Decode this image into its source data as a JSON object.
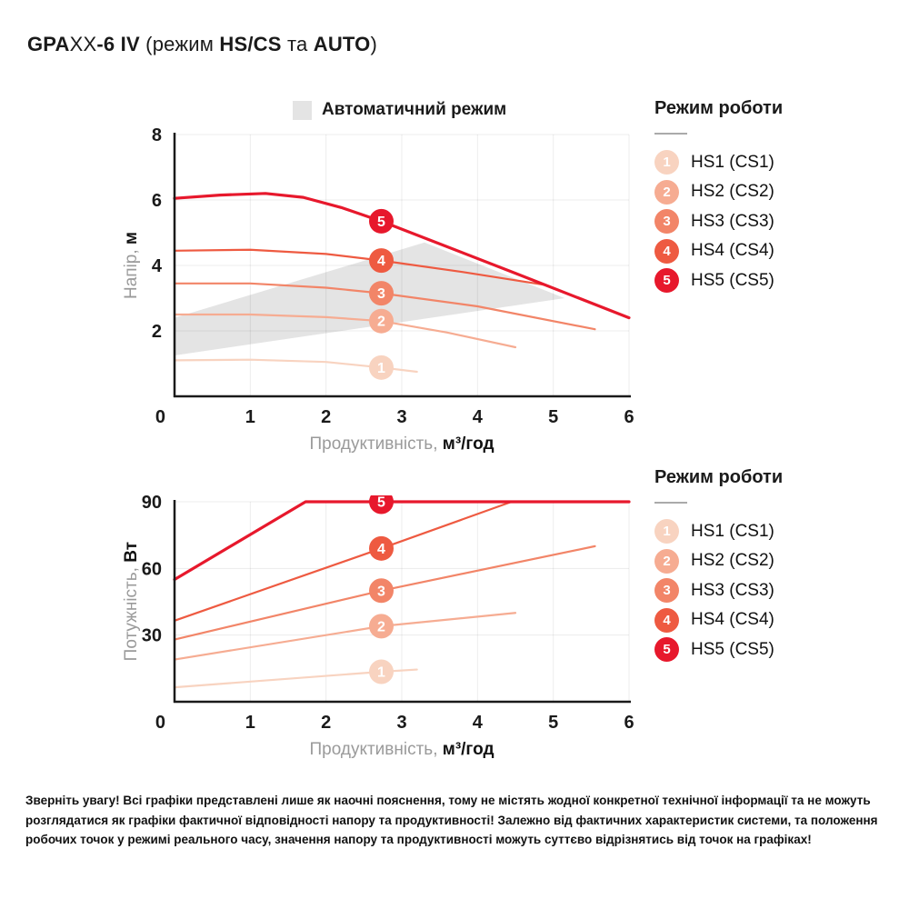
{
  "title_segments": [
    {
      "t": "GPA",
      "b": true
    },
    {
      "t": "XX",
      "b": false
    },
    {
      "t": "-6 IV",
      "b": true
    },
    {
      "t": " (режим ",
      "b": false
    },
    {
      "t": "HS/CS",
      "b": true
    },
    {
      "t": " та ",
      "b": false
    },
    {
      "t": "AUTO",
      "b": true
    },
    {
      "t": ")",
      "b": false
    }
  ],
  "mode_legend": {
    "title": "Режим роботи",
    "items": [
      {
        "num": "1",
        "label": "HS1 (CS1)",
        "color": "#f8d3c0"
      },
      {
        "num": "2",
        "label": "HS2 (CS2)",
        "color": "#f6ac92"
      },
      {
        "num": "3",
        "label": "HS3 (CS3)",
        "color": "#f28568"
      },
      {
        "num": "4",
        "label": "HS4 (CS4)",
        "color": "#ee5a41"
      },
      {
        "num": "5",
        "label": "HS5 (CS5)",
        "color": "#e7182c"
      }
    ]
  },
  "chart_data": [
    {
      "type": "line",
      "title": "Напір vs Продуктивність",
      "xlabel_segments": [
        {
          "t": "Продуктивність, ",
          "m": true
        },
        {
          "t": "м³/год",
          "b": true
        }
      ],
      "ylabel_segments": [
        {
          "t": "Напір, ",
          "m": true
        },
        {
          "t": "м",
          "b": true
        }
      ],
      "xlabel": "Продуктивність, м³/год",
      "ylabel": "Напір, м",
      "xlim": [
        0,
        6
      ],
      "ylim": [
        0,
        8
      ],
      "xticks": [
        0,
        1,
        2,
        3,
        4,
        5,
        6
      ],
      "yticks": [
        0,
        2,
        4,
        6,
        8
      ],
      "grid": true,
      "auto_mode_band": {
        "label": "Автоматичний режим",
        "color": "#e4e4e4",
        "points": [
          [
            0,
            1.25
          ],
          [
            0,
            2.4
          ],
          [
            3.3,
            4.7
          ],
          [
            5.15,
            3.0
          ]
        ]
      },
      "series": [
        {
          "name": "HS1 (CS1)",
          "color": "#f8d3c0",
          "width": 2.2,
          "points": [
            [
              0,
              1.1
            ],
            [
              1,
              1.12
            ],
            [
              2,
              1.05
            ],
            [
              2.73,
              0.88
            ],
            [
              3.2,
              0.75
            ]
          ]
        },
        {
          "name": "HS2 (CS2)",
          "color": "#f6ac92",
          "width": 2.2,
          "points": [
            [
              0,
              2.5
            ],
            [
              1,
              2.5
            ],
            [
              2,
              2.42
            ],
            [
              2.73,
              2.3
            ],
            [
              3.6,
              1.95
            ],
            [
              4.5,
              1.5
            ]
          ]
        },
        {
          "name": "HS3 (CS3)",
          "color": "#f28568",
          "width": 2.2,
          "points": [
            [
              0,
              3.45
            ],
            [
              1,
              3.45
            ],
            [
              2,
              3.32
            ],
            [
              2.73,
              3.15
            ],
            [
              4,
              2.75
            ],
            [
              5.55,
              2.05
            ]
          ]
        },
        {
          "name": "HS4 (CS4)",
          "color": "#ee5a41",
          "width": 2.2,
          "points": [
            [
              0,
              4.45
            ],
            [
              1,
              4.48
            ],
            [
              2,
              4.35
            ],
            [
              2.73,
              4.15
            ],
            [
              3.8,
              3.8
            ],
            [
              4.9,
              3.4
            ]
          ]
        },
        {
          "name": "HS5 (CS5)",
          "color": "#e7182c",
          "width": 3.2,
          "points": [
            [
              0,
              6.05
            ],
            [
              0.6,
              6.15
            ],
            [
              1.2,
              6.2
            ],
            [
              1.7,
              6.08
            ],
            [
              2.2,
              5.77
            ],
            [
              2.73,
              5.35
            ],
            [
              3.5,
              4.66
            ],
            [
              4.5,
              3.76
            ],
            [
              6,
              2.4
            ]
          ]
        }
      ],
      "markers": [
        {
          "label": "1",
          "x": 2.73,
          "y": 0.88,
          "color": "#f8d3c0"
        },
        {
          "label": "2",
          "x": 2.73,
          "y": 2.3,
          "color": "#f6ac92"
        },
        {
          "label": "3",
          "x": 2.73,
          "y": 3.15,
          "color": "#f28568"
        },
        {
          "label": "4",
          "x": 2.73,
          "y": 4.15,
          "color": "#ee5a41"
        },
        {
          "label": "5",
          "x": 2.73,
          "y": 5.35,
          "color": "#e7182c"
        }
      ]
    },
    {
      "type": "line",
      "title": "Потужність vs Продуктивність",
      "xlabel_segments": [
        {
          "t": "Продуктивність, ",
          "m": true
        },
        {
          "t": "м³/год",
          "b": true
        }
      ],
      "ylabel_segments": [
        {
          "t": "Потужність, ",
          "m": true
        },
        {
          "t": "Вт",
          "b": true
        }
      ],
      "xlabel": "Продуктивність, м³/год",
      "ylabel": "Потужність, Вт",
      "xlim": [
        0,
        6
      ],
      "ylim": [
        0,
        90
      ],
      "xticks": [
        0,
        1,
        2,
        3,
        4,
        5,
        6
      ],
      "yticks": [
        0,
        30,
        60,
        90
      ],
      "grid": true,
      "series": [
        {
          "name": "HS1 (CS1)",
          "color": "#f8d3c0",
          "width": 2.2,
          "points": [
            [
              0,
              6.5
            ],
            [
              2.73,
              13.5
            ],
            [
              3.2,
              14.5
            ]
          ]
        },
        {
          "name": "HS2 (CS2)",
          "color": "#f6ac92",
          "width": 2.2,
          "points": [
            [
              0,
              19
            ],
            [
              2.73,
              34
            ],
            [
              4.5,
              40
            ]
          ]
        },
        {
          "name": "HS3 (CS3)",
          "color": "#f28568",
          "width": 2.2,
          "points": [
            [
              0,
              28
            ],
            [
              2.73,
              50
            ],
            [
              5.55,
              70
            ]
          ]
        },
        {
          "name": "HS4 (CS4)",
          "color": "#ee5a41",
          "width": 2.2,
          "points": [
            [
              0,
              36.5
            ],
            [
              2.73,
              69
            ],
            [
              4.45,
              90
            ]
          ]
        },
        {
          "name": "HS5 (CS5)",
          "color": "#e7182c",
          "width": 3.2,
          "points": [
            [
              0,
              55
            ],
            [
              1.73,
              90
            ],
            [
              6,
              90
            ]
          ]
        }
      ],
      "markers": [
        {
          "label": "1",
          "x": 2.73,
          "y": 13.5,
          "color": "#f8d3c0"
        },
        {
          "label": "2",
          "x": 2.73,
          "y": 34,
          "color": "#f6ac92"
        },
        {
          "label": "3",
          "x": 2.73,
          "y": 50,
          "color": "#f28568"
        },
        {
          "label": "4",
          "x": 2.73,
          "y": 69,
          "color": "#ee5a41"
        },
        {
          "label": "5",
          "x": 2.73,
          "y": 90,
          "color": "#e7182c"
        }
      ]
    }
  ],
  "disclaimer": "Зверніть увагу! Всі графіки представлені лише як наочні пояснення, тому не містять жодної конкретної технічної інформації та не можуть розглядатися як графіки фактичної відповідності напору та продуктивності! Залежно від фактичних характеристик системи, та положення робочих точок у режимі реального часу, значення напору та продуктивності можуть суттєво відрізнятись від точок на графіках!",
  "style": {
    "grid_color": "rgba(0,0,0,0.075)",
    "axis_color": "#1a1a1a",
    "tick_color": "#1a1a1a"
  }
}
